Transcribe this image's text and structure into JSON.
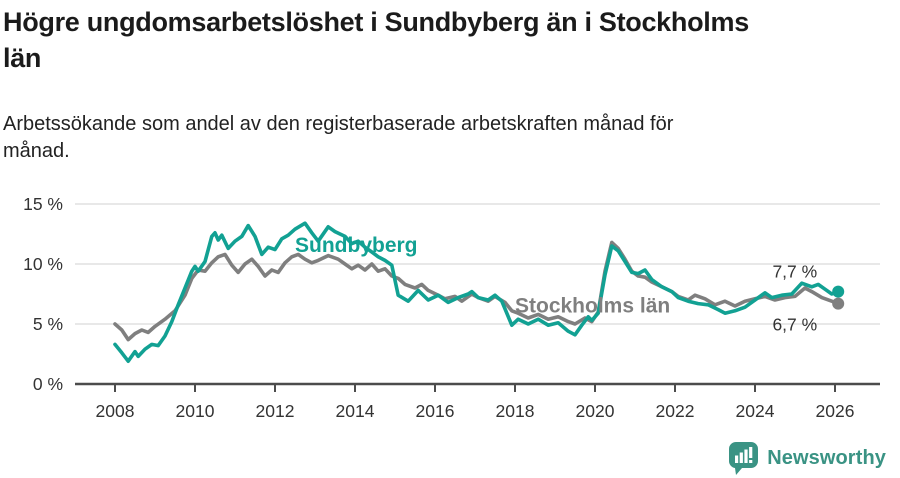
{
  "header": {
    "title": "Högre ungdomsarbetslöshet i Sundbyberg än i Stockholms län",
    "title_lines": [
      "Högre ungdomsarbetslöshet i Sundbyberg än i Stockholms",
      "län"
    ],
    "subtitle": "Arbetssökande som andel av den registerbaserade arbetskraften månad för månad.",
    "subtitle_lines": [
      "Arbetssökande som andel av den registerbaserade arbetskraften månad för",
      "månad."
    ]
  },
  "footer": {
    "brand": "Newsworthy"
  },
  "colors": {
    "accent_teal": "#12a193",
    "line_gray": "#7f7f7f",
    "brand_teal": "#3a9384",
    "axis_text": "#333333",
    "axis_line": "#4c4c4c",
    "gridline": "#e1e1e1"
  },
  "chart_data": {
    "type": "line",
    "title": "Högre ungdomsarbetslöshet i Sundbyberg än i Stockholms län",
    "subtitle": "Arbetssökande som andel av den registerbaserade arbetskraften månad för månad.",
    "xlabel": "",
    "ylabel": "",
    "unit": "%",
    "grid": true,
    "xlim": [
      2007,
      2027.1
    ],
    "ylim": [
      0,
      15.8
    ],
    "x_ticks": [
      2008,
      2010,
      2012,
      2014,
      2016,
      2018,
      2020,
      2022,
      2024,
      2026
    ],
    "x_tick_labels": [
      "2008",
      "2010",
      "2012",
      "2014",
      "2016",
      "2018",
      "2020",
      "2022",
      "2024",
      "2026"
    ],
    "y_ticks": [
      {
        "value": 0,
        "label": "0 %"
      },
      {
        "value": 5,
        "label": "5 %"
      },
      {
        "value": 10,
        "label": "10 %"
      },
      {
        "value": 15,
        "label": "15 %"
      }
    ],
    "legend_position": "inline-labels",
    "series": [
      {
        "name": "Sundbyberg",
        "color": "#12a193",
        "end_label": "7,7 %",
        "end_value": 7.7,
        "end_label_offset": {
          "dx": -21,
          "dy": -14
        },
        "name_label_anchor": {
          "x": 2012.5,
          "y": 11.0
        },
        "points": [
          [
            2008.0,
            3.3
          ],
          [
            2008.17,
            2.6
          ],
          [
            2008.33,
            1.9
          ],
          [
            2008.5,
            2.7
          ],
          [
            2008.58,
            2.3
          ],
          [
            2008.75,
            2.9
          ],
          [
            2008.92,
            3.3
          ],
          [
            2009.08,
            3.2
          ],
          [
            2009.25,
            4.0
          ],
          [
            2009.42,
            5.2
          ],
          [
            2009.58,
            6.6
          ],
          [
            2009.75,
            8.0
          ],
          [
            2009.92,
            9.4
          ],
          [
            2010.0,
            9.8
          ],
          [
            2010.08,
            9.4
          ],
          [
            2010.25,
            10.2
          ],
          [
            2010.42,
            12.3
          ],
          [
            2010.5,
            12.6
          ],
          [
            2010.58,
            12.0
          ],
          [
            2010.67,
            12.4
          ],
          [
            2010.83,
            11.3
          ],
          [
            2011.0,
            11.9
          ],
          [
            2011.17,
            12.3
          ],
          [
            2011.33,
            13.2
          ],
          [
            2011.5,
            12.3
          ],
          [
            2011.67,
            10.8
          ],
          [
            2011.83,
            11.4
          ],
          [
            2012.0,
            11.2
          ],
          [
            2012.17,
            12.1
          ],
          [
            2012.33,
            12.4
          ],
          [
            2012.5,
            12.9
          ],
          [
            2012.75,
            13.4
          ],
          [
            2012.92,
            12.6
          ],
          [
            2013.08,
            11.9
          ],
          [
            2013.33,
            13.1
          ],
          [
            2013.5,
            12.7
          ],
          [
            2013.75,
            12.3
          ],
          [
            2013.92,
            11.7
          ],
          [
            2014.08,
            11.9
          ],
          [
            2014.25,
            11.4
          ],
          [
            2014.42,
            11.0
          ],
          [
            2014.58,
            10.6
          ],
          [
            2014.75,
            10.3
          ],
          [
            2014.92,
            9.9
          ],
          [
            2015.08,
            7.4
          ],
          [
            2015.33,
            6.9
          ],
          [
            2015.58,
            7.8
          ],
          [
            2015.83,
            7.0
          ],
          [
            2016.08,
            7.4
          ],
          [
            2016.33,
            6.8
          ],
          [
            2016.58,
            7.2
          ],
          [
            2016.83,
            7.5
          ],
          [
            2016.92,
            7.7
          ],
          [
            2017.08,
            7.2
          ],
          [
            2017.33,
            7.0
          ],
          [
            2017.5,
            7.4
          ],
          [
            2017.67,
            6.9
          ],
          [
            2017.92,
            4.9
          ],
          [
            2018.08,
            5.4
          ],
          [
            2018.33,
            5.0
          ],
          [
            2018.58,
            5.4
          ],
          [
            2018.83,
            4.9
          ],
          [
            2019.08,
            5.1
          ],
          [
            2019.33,
            4.4
          ],
          [
            2019.5,
            4.1
          ],
          [
            2019.67,
            4.9
          ],
          [
            2019.83,
            5.6
          ],
          [
            2019.92,
            5.3
          ],
          [
            2020.08,
            5.9
          ],
          [
            2020.25,
            9.1
          ],
          [
            2020.42,
            11.5
          ],
          [
            2020.58,
            11.1
          ],
          [
            2020.75,
            10.2
          ],
          [
            2020.92,
            9.3
          ],
          [
            2021.08,
            9.2
          ],
          [
            2021.25,
            9.5
          ],
          [
            2021.42,
            8.7
          ],
          [
            2021.67,
            8.1
          ],
          [
            2021.92,
            7.7
          ],
          [
            2022.08,
            7.2
          ],
          [
            2022.33,
            6.9
          ],
          [
            2022.58,
            6.7
          ],
          [
            2022.83,
            6.6
          ],
          [
            2023.08,
            6.2
          ],
          [
            2023.25,
            5.9
          ],
          [
            2023.5,
            6.1
          ],
          [
            2023.75,
            6.4
          ],
          [
            2024.0,
            7.0
          ],
          [
            2024.25,
            7.6
          ],
          [
            2024.42,
            7.2
          ],
          [
            2024.67,
            7.4
          ],
          [
            2024.92,
            7.5
          ],
          [
            2025.17,
            8.4
          ],
          [
            2025.42,
            8.1
          ],
          [
            2025.58,
            8.3
          ],
          [
            2025.75,
            7.9
          ],
          [
            2025.92,
            7.5
          ],
          [
            2026.08,
            7.7
          ]
        ]
      },
      {
        "name": "Stockholms län",
        "color": "#7f7f7f",
        "end_label": "6,7 %",
        "end_value": 6.7,
        "end_label_offset": {
          "dx": -21,
          "dy": 27
        },
        "name_label_anchor": {
          "x": 2018.0,
          "y": 5.95
        },
        "points": [
          [
            2008.0,
            5.0
          ],
          [
            2008.17,
            4.5
          ],
          [
            2008.33,
            3.7
          ],
          [
            2008.5,
            4.2
          ],
          [
            2008.67,
            4.5
          ],
          [
            2008.83,
            4.3
          ],
          [
            2009.0,
            4.8
          ],
          [
            2009.25,
            5.4
          ],
          [
            2009.5,
            6.1
          ],
          [
            2009.75,
            7.4
          ],
          [
            2009.92,
            8.8
          ],
          [
            2010.08,
            9.5
          ],
          [
            2010.25,
            9.4
          ],
          [
            2010.42,
            10.1
          ],
          [
            2010.58,
            10.6
          ],
          [
            2010.75,
            10.8
          ],
          [
            2010.92,
            9.9
          ],
          [
            2011.08,
            9.3
          ],
          [
            2011.25,
            10.0
          ],
          [
            2011.42,
            10.4
          ],
          [
            2011.58,
            9.8
          ],
          [
            2011.75,
            9.0
          ],
          [
            2011.92,
            9.5
          ],
          [
            2012.08,
            9.3
          ],
          [
            2012.25,
            10.1
          ],
          [
            2012.42,
            10.6
          ],
          [
            2012.58,
            10.8
          ],
          [
            2012.75,
            10.4
          ],
          [
            2012.92,
            10.1
          ],
          [
            2013.08,
            10.3
          ],
          [
            2013.33,
            10.7
          ],
          [
            2013.58,
            10.4
          ],
          [
            2013.75,
            10.0
          ],
          [
            2013.92,
            9.6
          ],
          [
            2014.08,
            9.9
          ],
          [
            2014.25,
            9.5
          ],
          [
            2014.42,
            10.0
          ],
          [
            2014.58,
            9.4
          ],
          [
            2014.75,
            9.6
          ],
          [
            2014.92,
            9.0
          ],
          [
            2015.08,
            8.8
          ],
          [
            2015.25,
            8.3
          ],
          [
            2015.5,
            8.0
          ],
          [
            2015.67,
            8.3
          ],
          [
            2015.83,
            7.8
          ],
          [
            2016.08,
            7.4
          ],
          [
            2016.25,
            7.1
          ],
          [
            2016.5,
            7.3
          ],
          [
            2016.67,
            6.9
          ],
          [
            2016.92,
            7.5
          ],
          [
            2017.08,
            7.2
          ],
          [
            2017.33,
            6.9
          ],
          [
            2017.5,
            7.3
          ],
          [
            2017.75,
            6.8
          ],
          [
            2017.92,
            6.1
          ],
          [
            2018.08,
            5.9
          ],
          [
            2018.33,
            5.5
          ],
          [
            2018.58,
            5.8
          ],
          [
            2018.83,
            5.4
          ],
          [
            2019.08,
            5.6
          ],
          [
            2019.33,
            5.2
          ],
          [
            2019.5,
            5.0
          ],
          [
            2019.75,
            5.5
          ],
          [
            2019.92,
            5.2
          ],
          [
            2020.08,
            6.0
          ],
          [
            2020.25,
            9.4
          ],
          [
            2020.42,
            11.8
          ],
          [
            2020.58,
            11.3
          ],
          [
            2020.75,
            10.4
          ],
          [
            2020.92,
            9.4
          ],
          [
            2021.08,
            9.0
          ],
          [
            2021.25,
            8.9
          ],
          [
            2021.42,
            8.5
          ],
          [
            2021.67,
            8.1
          ],
          [
            2021.92,
            7.7
          ],
          [
            2022.08,
            7.3
          ],
          [
            2022.33,
            7.0
          ],
          [
            2022.5,
            7.4
          ],
          [
            2022.75,
            7.1
          ],
          [
            2023.0,
            6.6
          ],
          [
            2023.25,
            6.9
          ],
          [
            2023.5,
            6.5
          ],
          [
            2023.75,
            6.9
          ],
          [
            2024.0,
            7.1
          ],
          [
            2024.25,
            7.3
          ],
          [
            2024.5,
            7.0
          ],
          [
            2024.75,
            7.2
          ],
          [
            2025.0,
            7.3
          ],
          [
            2025.25,
            8.0
          ],
          [
            2025.42,
            7.7
          ],
          [
            2025.67,
            7.2
          ],
          [
            2025.92,
            6.9
          ],
          [
            2026.08,
            6.7
          ]
        ]
      }
    ]
  }
}
